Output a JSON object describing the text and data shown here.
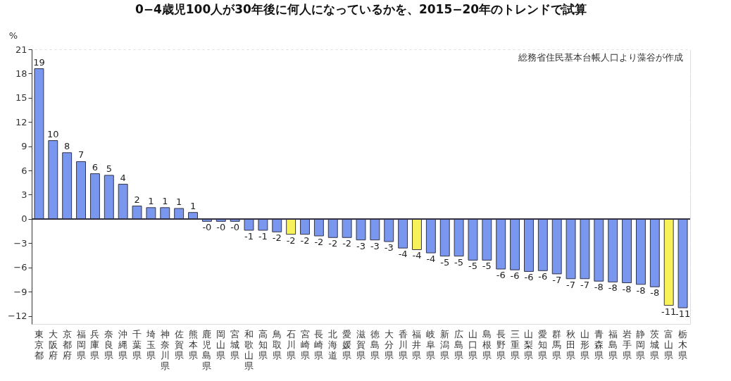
{
  "chart_data": {
    "type": "bar",
    "title": "0−4歳児100人が30年後に何人になっているかを、2015−20年のトレンドで試算",
    "ylabel": "%",
    "annotations": [
      "総務省住民基本台帳人口より藻谷が作成"
    ],
    "categories": [
      "東京都",
      "大阪府",
      "京都府",
      "福岡県",
      "兵庫県",
      "奈良県",
      "沖縄県",
      "千葉県",
      "埼玉県",
      "神奈川県",
      "佐賀県",
      "熊本県",
      "鹿児島県",
      "岡山県",
      "宮城県",
      "和歌山県",
      "高知県",
      "鳥取県",
      "石川県",
      "宮崎県",
      "長崎県",
      "北海道",
      "愛媛県",
      "滋賀県",
      "徳島県",
      "大分県",
      "香川県",
      "福井県",
      "岐阜県",
      "新潟県",
      "広島県",
      "山口県",
      "島根県",
      "長野県",
      "三重県",
      "山梨県",
      "愛知県",
      "群馬県",
      "秋田県",
      "山形県",
      "青森県",
      "福島県",
      "岩手県",
      "静岡県",
      "茨城県",
      "富山県",
      "栃木県"
    ],
    "values": [
      18.6,
      9.7,
      8.2,
      7.1,
      5.6,
      5.4,
      4.3,
      1.6,
      1.4,
      1.4,
      1.3,
      0.8,
      -0.3,
      -0.3,
      -0.3,
      -1.4,
      -1.4,
      -1.6,
      -1.9,
      -1.9,
      -2.1,
      -2.3,
      -2.3,
      -2.6,
      -2.6,
      -2.8,
      -3.6,
      -3.8,
      -4.2,
      -4.6,
      -4.6,
      -5.1,
      -5.1,
      -6.2,
      -6.3,
      -6.5,
      -6.4,
      -6.8,
      -7.4,
      -7.4,
      -7.7,
      -7.8,
      -7.9,
      -8.1,
      -8.4,
      -10.7,
      -11.0
    ],
    "value_labels": [
      "19",
      "10",
      "8",
      "7",
      "6",
      "5",
      "4",
      "2",
      "1",
      "1",
      "1",
      "1",
      "-0",
      "-0",
      "-0",
      "-1",
      "-1",
      "-2",
      "-2",
      "-2",
      "-2",
      "-2",
      "-2",
      "-3",
      "-3",
      "-3",
      "-4",
      "-4",
      "-4",
      "-5",
      "-5",
      "-5",
      "-5",
      "-6",
      "-6",
      "-6",
      "-6",
      "-7",
      "-7",
      "-7",
      "-8",
      "-8",
      "-8",
      "-8",
      "-8",
      "-11",
      "-11"
    ],
    "colors": [
      "#7a97f0",
      "#7a97f0",
      "#7a97f0",
      "#7a97f0",
      "#7a97f0",
      "#7a97f0",
      "#7a97f0",
      "#7a97f0",
      "#7a97f0",
      "#7a97f0",
      "#7a97f0",
      "#7a97f0",
      "#7a97f0",
      "#7a97f0",
      "#7a97f0",
      "#7a97f0",
      "#7a97f0",
      "#7a97f0",
      "#f7f25a",
      "#7a97f0",
      "#7a97f0",
      "#7a97f0",
      "#7a97f0",
      "#7a97f0",
      "#7a97f0",
      "#7a97f0",
      "#7a97f0",
      "#f7f25a",
      "#7a97f0",
      "#7a97f0",
      "#7a97f0",
      "#7a97f0",
      "#7a97f0",
      "#7a97f0",
      "#7a97f0",
      "#7a97f0",
      "#7a97f0",
      "#7a97f0",
      "#7a97f0",
      "#7a97f0",
      "#7a97f0",
      "#7a97f0",
      "#7a97f0",
      "#7a97f0",
      "#7a97f0",
      "#f7f25a",
      "#7a97f0"
    ],
    "ylim": [
      -13,
      21
    ],
    "yticks": [
      -12,
      -9,
      -6,
      -3,
      0,
      3,
      6,
      9,
      12,
      15,
      18,
      21
    ],
    "grid": "y"
  }
}
